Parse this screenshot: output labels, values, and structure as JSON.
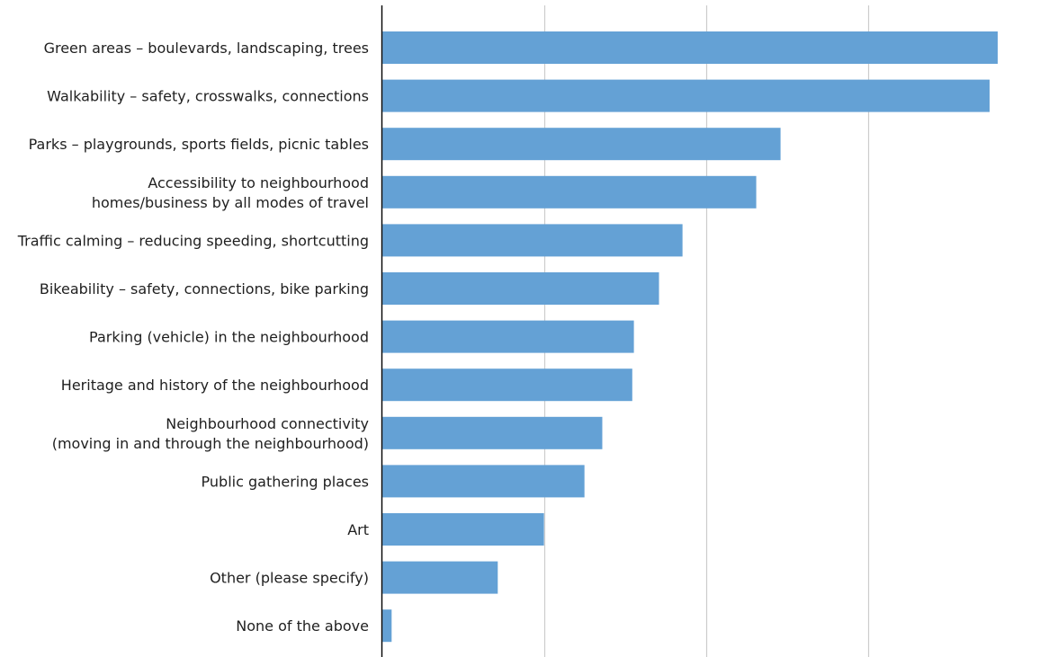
{
  "chart_data": {
    "type": "bar",
    "orientation": "horizontal",
    "title": "",
    "xlabel": "",
    "ylabel": "",
    "categories": [
      [
        "Green areas – boulevards, landscaping, trees"
      ],
      [
        "Walkability – safety, crosswalks, connections"
      ],
      [
        "Parks – playgrounds, sports fields, picnic tables"
      ],
      [
        "Accessibility to neighbourhood",
        "homes/business by all modes of travel"
      ],
      [
        "Traffic calming – reducing speeding, shortcutting"
      ],
      [
        "Bikeability – safety, connections, bike parking"
      ],
      [
        "Parking (vehicle) in the neighbourhood"
      ],
      [
        "Heritage and history of the neighbourhood"
      ],
      [
        "Neighbourhood connectivity",
        "(moving in and through the neighbourhood)"
      ],
      [
        "Public gathering places"
      ],
      [
        "Art"
      ],
      [
        "Other (please specify)"
      ],
      [
        "None of the above"
      ]
    ],
    "values": [
      76,
      75,
      49.2,
      46.2,
      37.1,
      34.2,
      31.1,
      30.9,
      27.2,
      25.0,
      20.0,
      14.3,
      1.2
    ],
    "xlim": [
      0,
      80
    ],
    "x_gridlines": [
      20,
      40,
      60
    ],
    "x_tick_labels_shown": false,
    "grid": true,
    "legend": "none",
    "bar_color": "#64a1d5",
    "grid_color": "#cccccc",
    "axis_color": "#000000"
  }
}
